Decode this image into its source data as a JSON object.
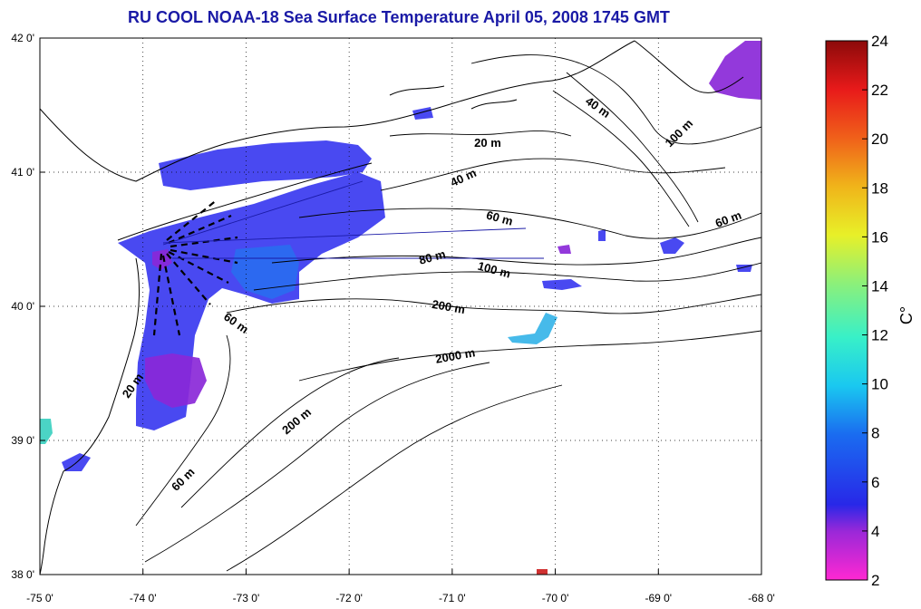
{
  "title": "RU COOL  NOAA-18 Sea Surface Temperature April 05, 2008 1745 GMT",
  "map": {
    "lon_range": [
      -75,
      -68
    ],
    "lat_range": [
      38,
      42
    ],
    "x_ticks": [
      "-75 0'",
      "-74 0'",
      "-73 0'",
      "-72 0'",
      "-71 0'",
      "-70 0'",
      "-69 0'",
      "-68 0'"
    ],
    "y_ticks": [
      "42 0'",
      "41 0'",
      "40 0'",
      "39 0'",
      "38 0'"
    ],
    "grid": "dotted",
    "land_color": "#ffffff",
    "coastline_color": "#000000"
  },
  "contour_labels": [
    "20 m",
    "40 m",
    "40 m",
    "100 m",
    "60 m",
    "60 m",
    "80 m",
    "100 m",
    "200 m",
    "2000 m",
    "60 m",
    "20 m",
    "200 m",
    "60 m"
  ],
  "colorbar": {
    "unit": "C°",
    "ticks": [
      "24",
      "22",
      "20",
      "18",
      "16",
      "14",
      "12",
      "10",
      "8",
      "6",
      "4",
      "2"
    ],
    "range": [
      2,
      24
    ],
    "colors": [
      "#ff28d2",
      "#9a28d8",
      "#2828e8",
      "#1a6cf0",
      "#1ac8f0",
      "#38f0c8",
      "#8cf07a",
      "#e8f028",
      "#f0b41a",
      "#f0601a",
      "#e81a1a",
      "#8c0a0a"
    ]
  },
  "sst_colors": {
    "cold": "#8a28d8",
    "cool": "#3a3af0",
    "mid": "#2a6cf0",
    "warm": "#36b4e8",
    "teal": "#3cd0c0",
    "hot": "#cc2020"
  }
}
